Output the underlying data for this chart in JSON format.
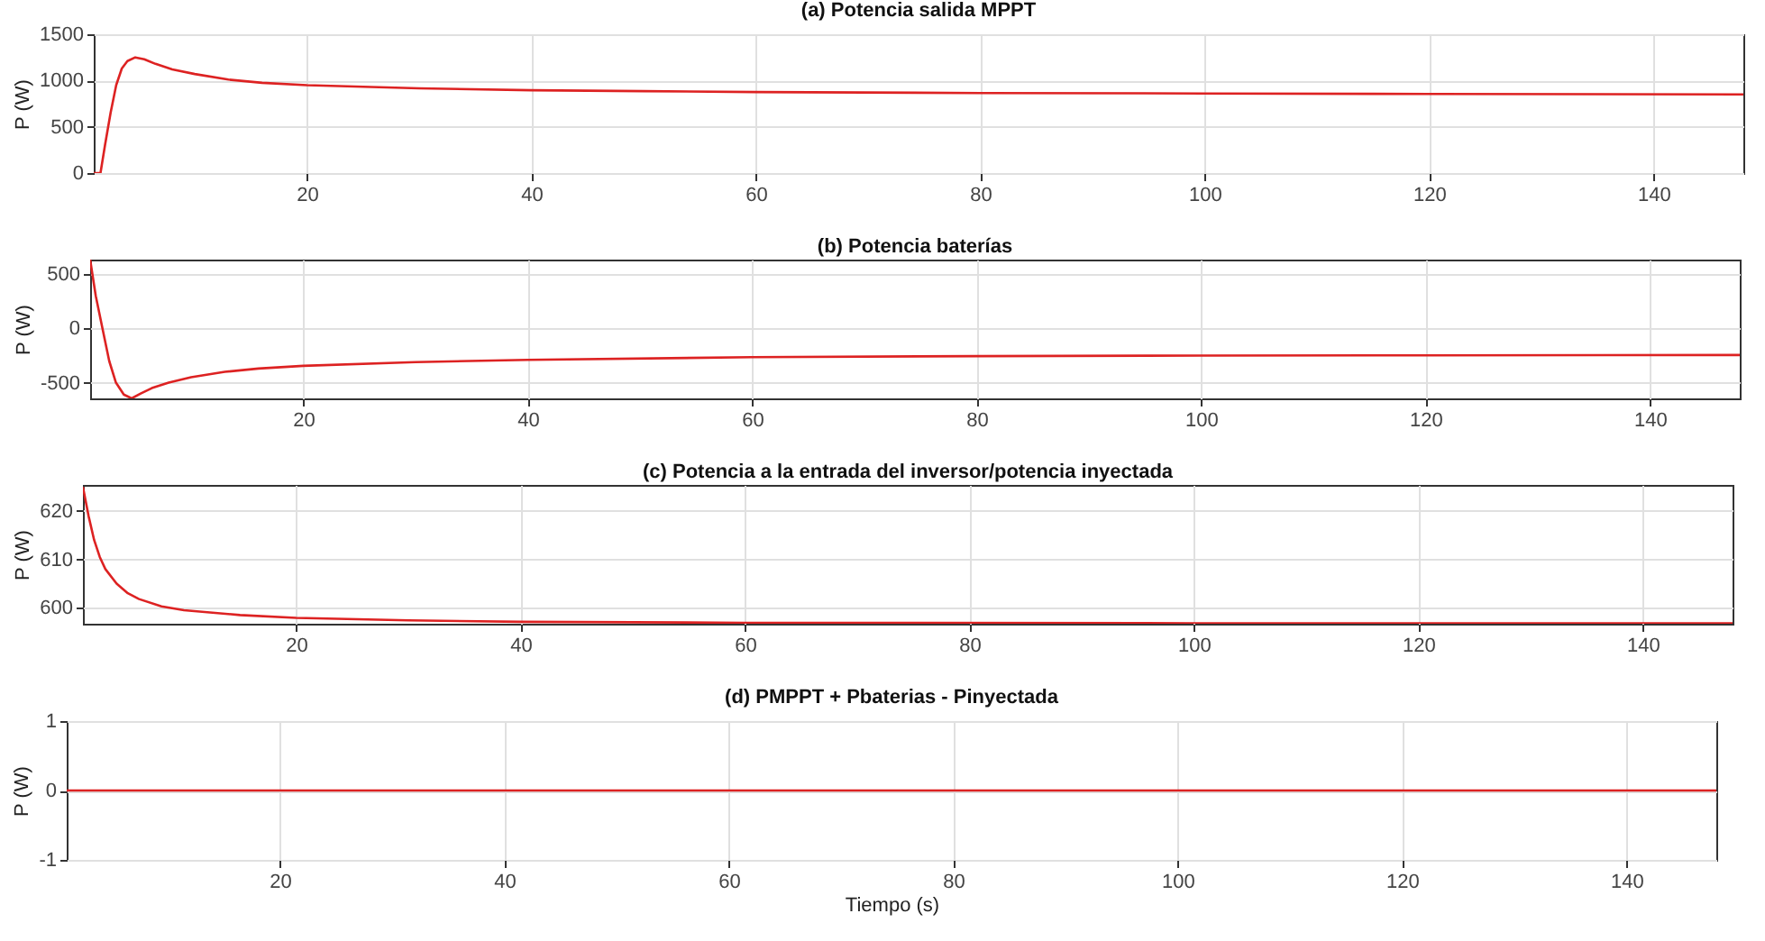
{
  "chart_data": [
    {
      "type": "line",
      "title": "(a) Potencia salida MPPT",
      "ylabel": "P (W)",
      "x": [
        1,
        1.6,
        2,
        2.5,
        3,
        3.5,
        4,
        4.7,
        5.5,
        6.5,
        8,
        10,
        13,
        16,
        20,
        30,
        40,
        50,
        60,
        80,
        100,
        120,
        148
      ],
      "series": [
        {
          "color": "#dd2222",
          "values": [
            0,
            0,
            300,
            650,
            950,
            1130,
            1210,
            1250,
            1230,
            1180,
            1120,
            1070,
            1010,
            975,
            950,
            915,
            895,
            885,
            875,
            865,
            860,
            855,
            850
          ]
        }
      ],
      "xlim": [
        1,
        148
      ],
      "xticks": [
        20,
        40,
        60,
        80,
        100,
        120,
        140
      ],
      "ylim": [
        0,
        1500
      ],
      "yticks": [
        0,
        500,
        1000,
        1500
      ],
      "grid": true
    },
    {
      "type": "line",
      "title": "(b) Potencia baterías",
      "ylabel": "P (W)",
      "x": [
        1,
        1.5,
        2.1,
        2.7,
        3.3,
        4,
        4.7,
        5.5,
        6.5,
        8,
        10,
        13,
        16,
        20,
        30,
        40,
        60,
        80,
        100,
        120,
        148
      ],
      "series": [
        {
          "color": "#dd2222",
          "values": [
            635,
            300,
            0,
            -300,
            -500,
            -610,
            -645,
            -600,
            -550,
            -500,
            -450,
            -400,
            -370,
            -345,
            -310,
            -290,
            -265,
            -255,
            -250,
            -248,
            -245
          ]
        }
      ],
      "xlim": [
        1,
        148
      ],
      "xticks": [
        20,
        40,
        60,
        80,
        100,
        120,
        140
      ],
      "ylim": [
        -645,
        635
      ],
      "yticks": [
        -500,
        0,
        500
      ],
      "grid": true
    },
    {
      "type": "line",
      "title": "(c) Potencia a la entrada del inversor/potencia inyectada",
      "ylabel": "P (W)",
      "x": [
        1,
        1.5,
        2,
        2.5,
        3,
        4,
        5,
        6,
        8,
        10,
        15,
        20,
        30,
        40,
        60,
        100,
        148
      ],
      "series": [
        {
          "color": "#dd2222",
          "values": [
            625,
            619,
            614,
            610.5,
            608,
            605,
            603,
            601.8,
            600.3,
            599.5,
            598.5,
            597.9,
            597.4,
            597.1,
            596.9,
            596.8,
            596.8
          ]
        }
      ],
      "xlim": [
        1,
        148
      ],
      "xticks": [
        20,
        40,
        60,
        80,
        100,
        120,
        140
      ],
      "ylim": [
        596.7,
        625.4
      ],
      "yticks": [
        600,
        610,
        620
      ],
      "grid": true
    },
    {
      "type": "line",
      "title": "(d) PMPPT + Pbaterias - Pinyectada",
      "ylabel": "P (W)",
      "xlabel": "Tiempo (s)",
      "x": [
        1,
        148
      ],
      "series": [
        {
          "color": "#dd2222",
          "values": [
            0,
            0
          ]
        }
      ],
      "xlim": [
        1,
        148
      ],
      "xticks": [
        20,
        40,
        60,
        80,
        100,
        120,
        140
      ],
      "ylim": [
        -1,
        1
      ],
      "yticks": [
        -1,
        0,
        1
      ],
      "grid": true
    }
  ]
}
